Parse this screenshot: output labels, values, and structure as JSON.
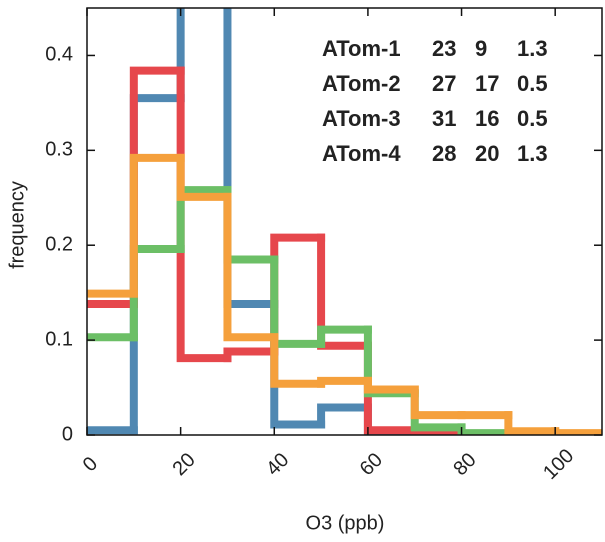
{
  "chart_data": {
    "type": "histogram",
    "xlabel": "O3  (ppb)",
    "ylabel": "frequency",
    "bins": [
      0,
      10,
      20,
      30,
      40,
      50,
      60,
      70,
      80,
      90,
      100,
      110
    ],
    "xlim": [
      0,
      110
    ],
    "ylim": [
      0,
      0.45
    ],
    "xticks": [
      0,
      20,
      40,
      60,
      80,
      100
    ],
    "yticks": [
      0,
      0.1,
      0.2,
      0.3,
      0.4
    ],
    "series": [
      {
        "name": "ATom-1",
        "color": "#5088b2",
        "stats": [
          23,
          9,
          1.3
        ],
        "values": [
          0.005,
          0.355,
          0.5,
          0.138,
          0.011,
          0.029,
          0,
          0,
          0,
          0,
          0
        ]
      },
      {
        "name": "ATom-2",
        "color": "#e6474c",
        "stats": [
          27,
          17,
          0.5
        ],
        "values": [
          0.138,
          0.384,
          0.081,
          0.088,
          0.208,
          0.094,
          0.005,
          0.002,
          0,
          0,
          0
        ]
      },
      {
        "name": "ATom-3",
        "color": "#6cbf66",
        "stats": [
          31,
          16,
          0.5
        ],
        "values": [
          0.103,
          0.196,
          0.258,
          0.185,
          0.096,
          0.111,
          0.044,
          0.008,
          0.002,
          0,
          0
        ]
      },
      {
        "name": "ATom-4",
        "color": "#f5a03c",
        "stats": [
          28,
          20,
          1.3
        ],
        "values": [
          0.149,
          0.292,
          0.251,
          0.103,
          0.054,
          0.057,
          0.048,
          0.021,
          0.021,
          0.004,
          0.002
        ]
      }
    ]
  }
}
